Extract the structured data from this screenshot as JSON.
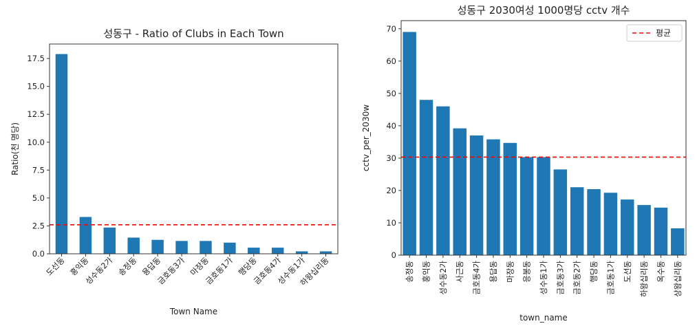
{
  "chart_data": [
    {
      "type": "bar",
      "title": "성동구 - Ratio of Clubs in Each Town",
      "xlabel": "Town Name",
      "ylabel": "Ratio(천 명당)",
      "categories": [
        "도선동",
        "홍익동",
        "성수동2가",
        "송정동",
        "용답동",
        "금호동3가",
        "마장동",
        "금호동1가",
        "행당동",
        "금호동4가",
        "성수동1가",
        "하왕십리동"
      ],
      "values": [
        17.9,
        3.3,
        2.35,
        1.45,
        1.25,
        1.15,
        1.15,
        1.0,
        0.55,
        0.55,
        0.22,
        0.22
      ],
      "ylim": [
        0,
        18.8
      ],
      "yticks": [
        "0.0",
        "2.5",
        "5.0",
        "7.5",
        "10.0",
        "12.5",
        "15.0",
        "17.5"
      ],
      "reference_line": {
        "value": 2.6,
        "color": "#ff0000",
        "style": "dashed"
      },
      "bar_color": "#1f77b4",
      "grid": false
    },
    {
      "type": "bar",
      "title": "성동구 2030여성 1000명당 cctv 개수",
      "xlabel": "town_name",
      "ylabel": "cctv_per_2030w",
      "categories": [
        "송정동",
        "홍익동",
        "성수동2가",
        "사근동",
        "금호동4가",
        "용답동",
        "마장동",
        "응봉동",
        "성수동1가",
        "금호동3가",
        "금호동2가",
        "행당동",
        "금호동1가",
        "도선동",
        "하왕십리동",
        "옥수동",
        "상왕십리동"
      ],
      "values": [
        69,
        48,
        46,
        39.2,
        37,
        35.8,
        34.7,
        30.3,
        30.3,
        26.5,
        21,
        20.4,
        19.3,
        17.2,
        15.5,
        14.7,
        8.3
      ],
      "ylim": [
        0,
        72.5
      ],
      "yticks": [
        "0",
        "10",
        "20",
        "30",
        "40",
        "50",
        "60",
        "70"
      ],
      "reference_line": {
        "value": 30.3,
        "color": "#ff0000",
        "style": "dashed",
        "label": "평균"
      },
      "legend": {
        "entries": [
          "평균"
        ],
        "position": "top-right"
      },
      "bar_color": "#1f77b4",
      "grid": false
    }
  ]
}
